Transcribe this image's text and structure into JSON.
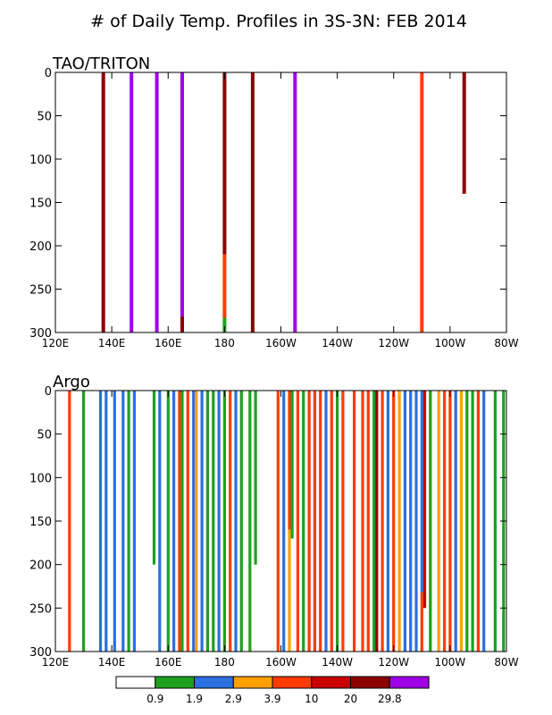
{
  "title": "# of Daily Temp. Profiles in 3S-3N: FEB 2014",
  "colorbar": {
    "labels": [
      "0.9",
      "1.9",
      "2.9",
      "3.9",
      "10",
      "20",
      "29.8"
    ],
    "colors": [
      "#ffffff",
      "#1ea01e",
      "#2b6fe0",
      "#ffa000",
      "#ff3c00",
      "#c80000",
      "#8c0000",
      "#a000e6"
    ]
  },
  "chart_data": [
    {
      "type": "bar",
      "title": "TAO/TRITON",
      "xlim": [
        120,
        280
      ],
      "ylim": [
        0,
        300
      ],
      "y_inverted": true,
      "xticks": [
        120,
        140,
        160,
        180,
        200,
        220,
        240,
        260,
        280
      ],
      "xticklabels": [
        "120E",
        "140E",
        "160E",
        "180",
        "160W",
        "140W",
        "120W",
        "100W",
        "80W"
      ],
      "yticks": [
        0,
        50,
        100,
        150,
        200,
        250,
        300
      ],
      "yticklabels": [
        "0",
        "50",
        "100",
        "150",
        "200",
        "250",
        "300"
      ],
      "bars": [
        {
          "lon": 137,
          "segments": [
            {
              "from": 0,
              "to": 300,
              "color": "#8c0000"
            }
          ]
        },
        {
          "lon": 147,
          "segments": [
            {
              "from": 0,
              "to": 300,
              "color": "#a000e6"
            }
          ]
        },
        {
          "lon": 156,
          "segments": [
            {
              "from": 0,
              "to": 300,
              "color": "#a000e6"
            }
          ]
        },
        {
          "lon": 165,
          "segments": [
            {
              "from": 0,
              "to": 282,
              "color": "#a000e6"
            },
            {
              "from": 282,
              "to": 300,
              "color": "#8c0000"
            }
          ]
        },
        {
          "lon": 180,
          "segments": [
            {
              "from": 0,
              "to": 210,
              "color": "#8c0000"
            },
            {
              "from": 210,
              "to": 283,
              "color": "#ff3c00"
            },
            {
              "from": 283,
              "to": 300,
              "color": "#1ea01e"
            }
          ]
        },
        {
          "lon": 190,
          "segments": [
            {
              "from": 0,
              "to": 300,
              "color": "#8c0000"
            }
          ]
        },
        {
          "lon": 205,
          "segments": [
            {
              "from": 0,
              "to": 300,
              "color": "#a000e6"
            }
          ]
        },
        {
          "lon": 250,
          "segments": [
            {
              "from": 0,
              "to": 300,
              "color": "#ff3c00"
            }
          ]
        },
        {
          "lon": 265,
          "segments": [
            {
              "from": 0,
              "to": 140,
              "color": "#8c0000"
            }
          ]
        }
      ]
    },
    {
      "type": "bar",
      "title": "Argo",
      "xlim": [
        120,
        280
      ],
      "ylim": [
        0,
        300
      ],
      "y_inverted": true,
      "xticks": [
        120,
        140,
        160,
        180,
        200,
        220,
        240,
        260,
        280
      ],
      "xticklabels": [
        "120E",
        "140E",
        "160E",
        "180",
        "160W",
        "140W",
        "120W",
        "100W",
        "80W"
      ],
      "yticks": [
        0,
        50,
        100,
        150,
        200,
        250,
        300
      ],
      "yticklabels": [
        "0",
        "50",
        "100",
        "150",
        "200",
        "250",
        "300"
      ],
      "bars": [
        {
          "lon": 125,
          "segments": [
            {
              "from": 0,
              "to": 300,
              "color": "#ff3c00"
            }
          ]
        },
        {
          "lon": 130,
          "segments": [
            {
              "from": 0,
              "to": 300,
              "color": "#1ea01e"
            }
          ]
        },
        {
          "lon": 136,
          "segments": [
            {
              "from": 0,
              "to": 300,
              "color": "#2b6fe0"
            }
          ]
        },
        {
          "lon": 138,
          "segments": [
            {
              "from": 0,
              "to": 300,
              "color": "#2b6fe0"
            }
          ]
        },
        {
          "lon": 141,
          "segments": [
            {
              "from": 0,
              "to": 300,
              "color": "#2b6fe0"
            }
          ]
        },
        {
          "lon": 144,
          "segments": [
            {
              "from": 0,
              "to": 300,
              "color": "#2b6fe0"
            }
          ]
        },
        {
          "lon": 146,
          "segments": [
            {
              "from": 0,
              "to": 300,
              "color": "#1ea01e"
            }
          ]
        },
        {
          "lon": 148,
          "segments": [
            {
              "from": 0,
              "to": 300,
              "color": "#2b6fe0"
            }
          ]
        },
        {
          "lon": 155,
          "segments": [
            {
              "from": 0,
              "to": 200,
              "color": "#1ea01e"
            }
          ]
        },
        {
          "lon": 157,
          "segments": [
            {
              "from": 0,
              "to": 300,
              "color": "#2b6fe0"
            }
          ]
        },
        {
          "lon": 160,
          "segments": [
            {
              "from": 0,
              "to": 300,
              "color": "#1ea01e"
            }
          ]
        },
        {
          "lon": 162,
          "segments": [
            {
              "from": 0,
              "to": 300,
              "color": "#2b6fe0"
            }
          ]
        },
        {
          "lon": 164,
          "segments": [
            {
              "from": 0,
              "to": 300,
              "color": "#ff3c00"
            }
          ]
        },
        {
          "lon": 165,
          "segments": [
            {
              "from": 0,
              "to": 300,
              "color": "#1ea01e"
            }
          ]
        },
        {
          "lon": 167,
          "segments": [
            {
              "from": 0,
              "to": 300,
              "color": "#ff3c00"
            }
          ]
        },
        {
          "lon": 169,
          "segments": [
            {
              "from": 0,
              "to": 300,
              "color": "#2b6fe0"
            }
          ]
        },
        {
          "lon": 170,
          "segments": [
            {
              "from": 0,
              "to": 300,
              "color": "#ffa000"
            }
          ]
        },
        {
          "lon": 172,
          "segments": [
            {
              "from": 0,
              "to": 300,
              "color": "#2b6fe0"
            }
          ]
        },
        {
          "lon": 174,
          "segments": [
            {
              "from": 0,
              "to": 300,
              "color": "#1ea01e"
            }
          ]
        },
        {
          "lon": 176,
          "segments": [
            {
              "from": 0,
              "to": 300,
              "color": "#1ea01e"
            }
          ]
        },
        {
          "lon": 178,
          "segments": [
            {
              "from": 0,
              "to": 300,
              "color": "#2b6fe0"
            }
          ]
        },
        {
          "lon": 180,
          "segments": [
            {
              "from": 0,
              "to": 300,
              "color": "#1ea01e"
            }
          ]
        },
        {
          "lon": 182,
          "segments": [
            {
              "from": 0,
              "to": 300,
              "color": "#ff3c00"
            }
          ]
        },
        {
          "lon": 184,
          "segments": [
            {
              "from": 0,
              "to": 300,
              "color": "#2b6fe0"
            }
          ]
        },
        {
          "lon": 186,
          "segments": [
            {
              "from": 0,
              "to": 300,
              "color": "#1ea01e"
            }
          ]
        },
        {
          "lon": 189,
          "segments": [
            {
              "from": 0,
              "to": 300,
              "color": "#1ea01e"
            }
          ]
        },
        {
          "lon": 191,
          "segments": [
            {
              "from": 0,
              "to": 200,
              "color": "#1ea01e"
            }
          ]
        },
        {
          "lon": 199,
          "segments": [
            {
              "from": 0,
              "to": 300,
              "color": "#ff3c00"
            }
          ]
        },
        {
          "lon": 201,
          "segments": [
            {
              "from": 0,
              "to": 300,
              "color": "#2b6fe0"
            }
          ]
        },
        {
          "lon": 203,
          "segments": [
            {
              "from": 0,
              "to": 160,
              "color": "#ff3c00"
            },
            {
              "from": 160,
              "to": 300,
              "color": "#ffa000"
            }
          ]
        },
        {
          "lon": 204,
          "segments": [
            {
              "from": 0,
              "to": 170,
              "color": "#1ea01e"
            }
          ]
        },
        {
          "lon": 206,
          "segments": [
            {
              "from": 0,
              "to": 300,
              "color": "#ff3c00"
            }
          ]
        },
        {
          "lon": 208,
          "segments": [
            {
              "from": 0,
              "to": 300,
              "color": "#1ea01e"
            }
          ]
        },
        {
          "lon": 210,
          "segments": [
            {
              "from": 0,
              "to": 300,
              "color": "#ff3c00"
            }
          ]
        },
        {
          "lon": 212,
          "segments": [
            {
              "from": 0,
              "to": 300,
              "color": "#ff3c00"
            }
          ]
        },
        {
          "lon": 214,
          "segments": [
            {
              "from": 0,
              "to": 300,
              "color": "#ff3c00"
            }
          ]
        },
        {
          "lon": 216,
          "segments": [
            {
              "from": 0,
              "to": 300,
              "color": "#2b6fe0"
            }
          ]
        },
        {
          "lon": 218,
          "segments": [
            {
              "from": 0,
              "to": 300,
              "color": "#ff3c00"
            }
          ]
        },
        {
          "lon": 220,
          "segments": [
            {
              "from": 0,
              "to": 300,
              "color": "#1ea01e"
            }
          ]
        },
        {
          "lon": 222,
          "segments": [
            {
              "from": 0,
              "to": 300,
              "color": "#ff3c00"
            }
          ]
        },
        {
          "lon": 226,
          "segments": [
            {
              "from": 0,
              "to": 300,
              "color": "#ff3c00"
            }
          ]
        },
        {
          "lon": 229,
          "segments": [
            {
              "from": 0,
              "to": 300,
              "color": "#ff3c00"
            }
          ]
        },
        {
          "lon": 231,
          "segments": [
            {
              "from": 0,
              "to": 300,
              "color": "#ff3c00"
            }
          ]
        },
        {
          "lon": 233,
          "segments": [
            {
              "from": 0,
              "to": 300,
              "color": "#1ea01e"
            }
          ]
        },
        {
          "lon": 234,
          "segments": [
            {
              "from": 0,
              "to": 300,
              "color": "#8c0000"
            }
          ]
        },
        {
          "lon": 236,
          "segments": [
            {
              "from": 0,
              "to": 300,
              "color": "#ff3c00"
            }
          ]
        },
        {
          "lon": 238,
          "segments": [
            {
              "from": 0,
              "to": 300,
              "color": "#2b6fe0"
            }
          ]
        },
        {
          "lon": 240,
          "segments": [
            {
              "from": 0,
              "to": 300,
              "color": "#ff3c00"
            }
          ]
        },
        {
          "lon": 242,
          "segments": [
            {
              "from": 0,
              "to": 300,
              "color": "#ffa000"
            }
          ]
        },
        {
          "lon": 244,
          "segments": [
            {
              "from": 0,
              "to": 300,
              "color": "#2b6fe0"
            }
          ]
        },
        {
          "lon": 246,
          "segments": [
            {
              "from": 0,
              "to": 300,
              "color": "#2b6fe0"
            }
          ]
        },
        {
          "lon": 248,
          "segments": [
            {
              "from": 0,
              "to": 300,
              "color": "#2b6fe0"
            }
          ]
        },
        {
          "lon": 250,
          "segments": [
            {
              "from": 0,
              "to": 232,
              "color": "#2b6fe0"
            },
            {
              "from": 232,
              "to": 300,
              "color": "#ff3c00"
            }
          ]
        },
        {
          "lon": 251,
          "segments": [
            {
              "from": 0,
              "to": 250,
              "color": "#c80000"
            }
          ]
        },
        {
          "lon": 253,
          "segments": [
            {
              "from": 0,
              "to": 300,
              "color": "#1ea01e"
            }
          ]
        },
        {
          "lon": 256,
          "segments": [
            {
              "from": 0,
              "to": 300,
              "color": "#ffa000"
            }
          ]
        },
        {
          "lon": 258,
          "segments": [
            {
              "from": 0,
              "to": 300,
              "color": "#ff3c00"
            }
          ]
        },
        {
          "lon": 260,
          "segments": [
            {
              "from": 0,
              "to": 300,
              "color": "#ff3c00"
            }
          ]
        },
        {
          "lon": 262,
          "segments": [
            {
              "from": 0,
              "to": 300,
              "color": "#2b6fe0"
            }
          ]
        },
        {
          "lon": 264,
          "segments": [
            {
              "from": 0,
              "to": 300,
              "color": "#ffa000"
            }
          ]
        },
        {
          "lon": 266,
          "segments": [
            {
              "from": 0,
              "to": 300,
              "color": "#1ea01e"
            }
          ]
        },
        {
          "lon": 268,
          "segments": [
            {
              "from": 0,
              "to": 300,
              "color": "#1ea01e"
            }
          ]
        },
        {
          "lon": 270,
          "segments": [
            {
              "from": 0,
              "to": 300,
              "color": "#ff3c00"
            }
          ]
        },
        {
          "lon": 272,
          "segments": [
            {
              "from": 0,
              "to": 300,
              "color": "#2b6fe0"
            }
          ]
        },
        {
          "lon": 276,
          "segments": [
            {
              "from": 0,
              "to": 300,
              "color": "#1ea01e"
            }
          ]
        },
        {
          "lon": 279,
          "segments": [
            {
              "from": 0,
              "to": 300,
              "color": "#1ea01e"
            }
          ]
        }
      ]
    }
  ]
}
